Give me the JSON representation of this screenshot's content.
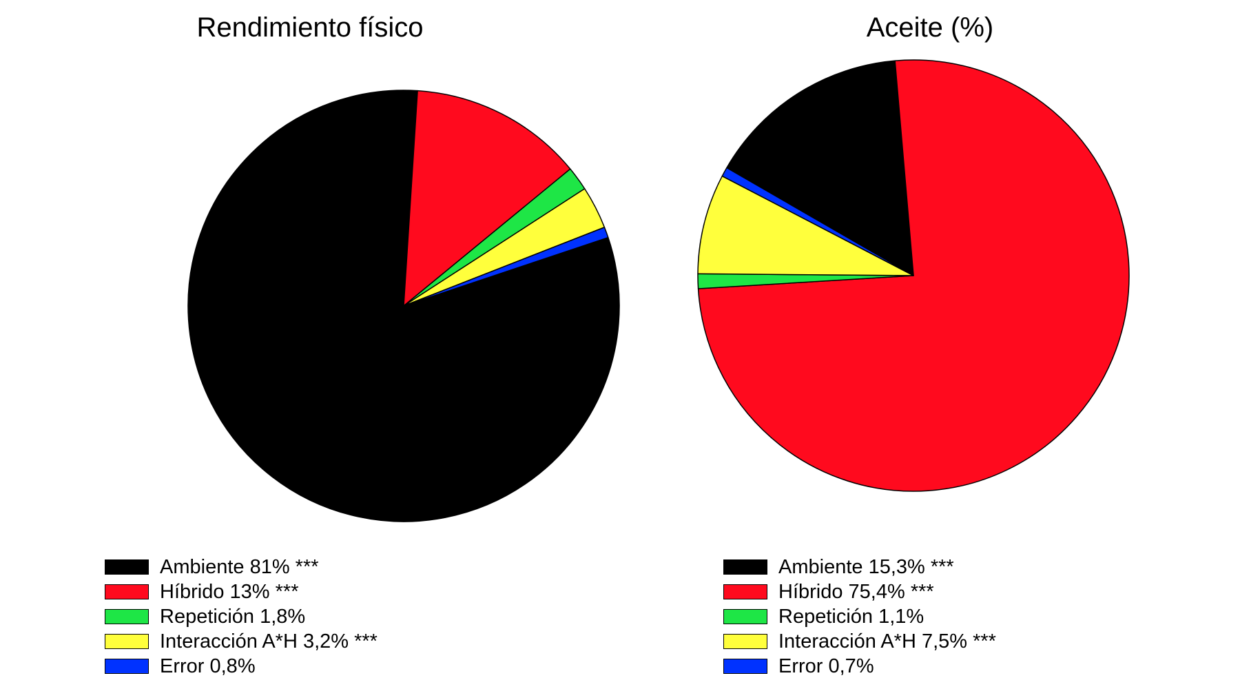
{
  "chart_data": [
    {
      "type": "pie",
      "title": "Rendimiento físico",
      "slices": [
        {
          "label": "Ambiente",
          "value": 81,
          "text": "Ambiente 81% ***",
          "color": "#000000"
        },
        {
          "label": "Híbrido",
          "value": 13,
          "text": "Híbrido 13% ***",
          "color": "#ff0a1e"
        },
        {
          "label": "Repetición",
          "value": 1.8,
          "text": "Repetición 1,8%",
          "color": "#1ee646"
        },
        {
          "label": "Interacción A*H",
          "value": 3.2,
          "text": "Interacción A*H 3,2% ***",
          "color": "#ffff3c"
        },
        {
          "label": "Error",
          "value": 0.8,
          "text": "Error 0,8%",
          "color": "#0032ff"
        }
      ],
      "legend_position": "bottom"
    },
    {
      "type": "pie",
      "title": "Aceite (%)",
      "slices": [
        {
          "label": "Ambiente",
          "value": 15.3,
          "text": "Ambiente 15,3% ***",
          "color": "#000000"
        },
        {
          "label": "Híbrido",
          "value": 75.4,
          "text": "Híbrido 75,4% ***",
          "color": "#ff0a1e"
        },
        {
          "label": "Repetición",
          "value": 1.1,
          "text": "Repetición 1,1%",
          "color": "#1ee646"
        },
        {
          "label": "Interacción A*H",
          "value": 7.5,
          "text": "Interacción A*H 7,5% ***",
          "color": "#ffff3c"
        },
        {
          "label": "Error",
          "value": 0.7,
          "text": "Error 0,7%",
          "color": "#0032ff"
        }
      ],
      "legend_position": "bottom"
    }
  ]
}
